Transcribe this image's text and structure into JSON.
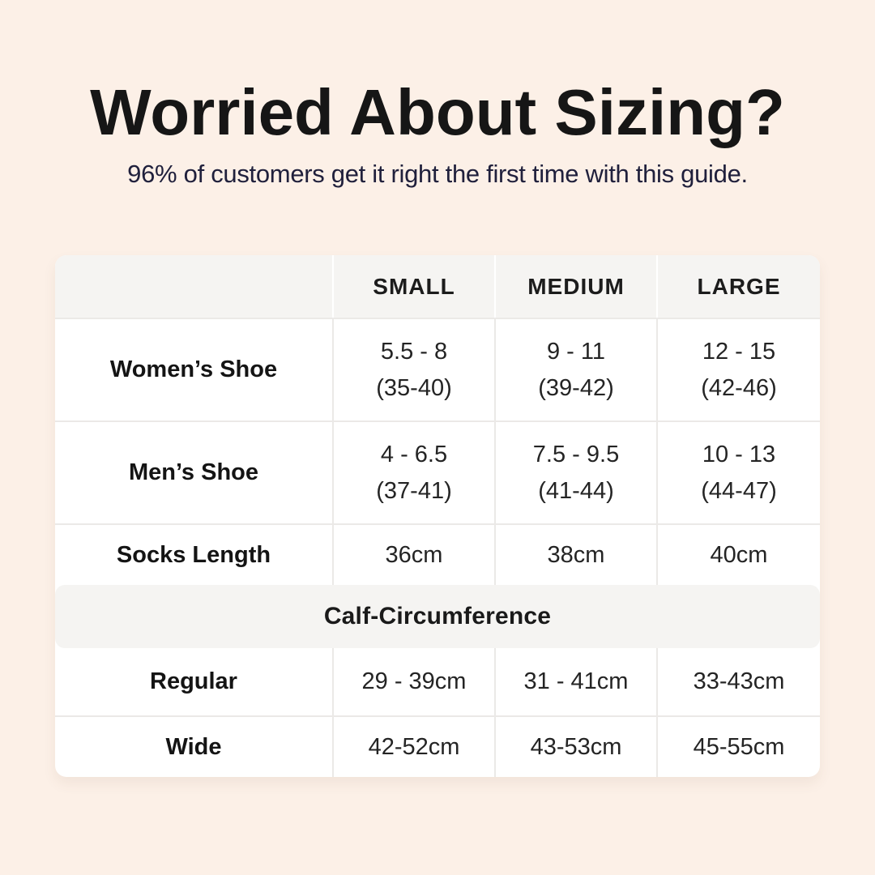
{
  "header": {
    "title": "Worried About Sizing?",
    "subtitle": "96% of customers get it right the first time with this guide."
  },
  "colors": {
    "background": "#fcf0e7",
    "table_bg": "#ffffff",
    "band_bg": "#f5f4f2",
    "divider": "#ebe9e7",
    "divider_on_gray": "#ffffff",
    "title_text": "#161616",
    "subtitle_text": "#20203c",
    "body_text": "#1f1f1f"
  },
  "table": {
    "headers": [
      "SMALL",
      "MEDIUM",
      "LARGE"
    ],
    "rows": [
      {
        "label": "Women’s Shoe",
        "cells": [
          {
            "line1": "5.5 - 8",
            "line2": "(35-40)"
          },
          {
            "line1": "9 - 11",
            "line2": "(39-42)"
          },
          {
            "line1": "12 - 15",
            "line2": "(42-46)"
          }
        ]
      },
      {
        "label": "Men’s Shoe",
        "cells": [
          {
            "line1": "4 - 6.5",
            "line2": "(37-41)"
          },
          {
            "line1": "7.5 - 9.5",
            "line2": "(41-44)"
          },
          {
            "line1": "10 - 13",
            "line2": "(44-47)"
          }
        ]
      },
      {
        "label": "Socks Length",
        "cells": [
          {
            "line1": "36cm"
          },
          {
            "line1": "38cm"
          },
          {
            "line1": "40cm"
          }
        ]
      }
    ],
    "section": {
      "title": "Calf-Circumference",
      "rows": [
        {
          "label": "Regular",
          "cells": [
            {
              "line1": "29 - 39cm"
            },
            {
              "line1": "31 - 41cm"
            },
            {
              "line1": "33-43cm"
            }
          ]
        },
        {
          "label": "Wide",
          "cells": [
            {
              "line1": "42-52cm"
            },
            {
              "line1": "43-53cm"
            },
            {
              "line1": "45-55cm"
            }
          ]
        }
      ]
    }
  }
}
